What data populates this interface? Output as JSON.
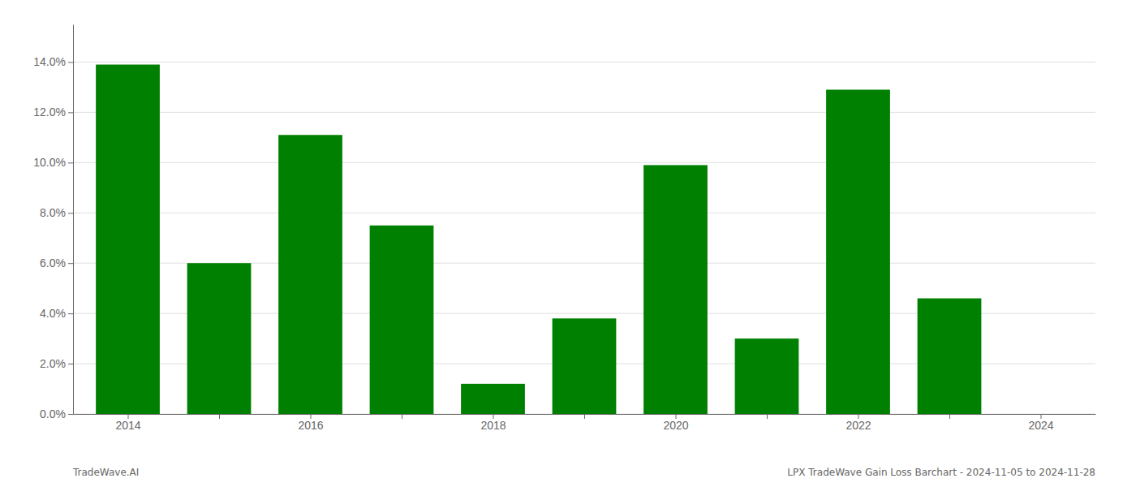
{
  "chart_data": {
    "type": "bar",
    "x": [
      2014,
      2015,
      2016,
      2017,
      2018,
      2019,
      2020,
      2021,
      2022,
      2023
    ],
    "values": [
      0.139,
      0.06,
      0.111,
      0.075,
      0.012,
      0.038,
      0.099,
      0.03,
      0.129,
      0.046
    ],
    "color": "#008000",
    "xlim": [
      2013.4,
      2024.6
    ],
    "xticks": [
      2014,
      {
        "value": 2015,
        "label": null
      },
      2016,
      {
        "value": 2017,
        "label": null
      },
      2018,
      {
        "value": 2019,
        "label": null
      },
      2020,
      {
        "value": 2021,
        "label": null
      },
      2022,
      {
        "value": 2023,
        "label": null
      },
      2024
    ],
    "ylim": [
      0,
      0.155
    ],
    "yticks": [
      {
        "value": 0.0,
        "label": "0.0%"
      },
      {
        "value": 0.02,
        "label": "2.0%"
      },
      {
        "value": 0.04,
        "label": "4.0%"
      },
      {
        "value": 0.06,
        "label": "6.0%"
      },
      {
        "value": 0.08,
        "label": "8.0%"
      },
      {
        "value": 0.1,
        "label": "10.0%"
      },
      {
        "value": 0.12,
        "label": "12.0%"
      },
      {
        "value": 0.14,
        "label": "14.0%"
      }
    ],
    "grid": true,
    "annotations": [
      "TradeWave.AI",
      "LPX TradeWave Gain Loss Barchart - 2024-11-05 to 2024-11-28"
    ]
  }
}
